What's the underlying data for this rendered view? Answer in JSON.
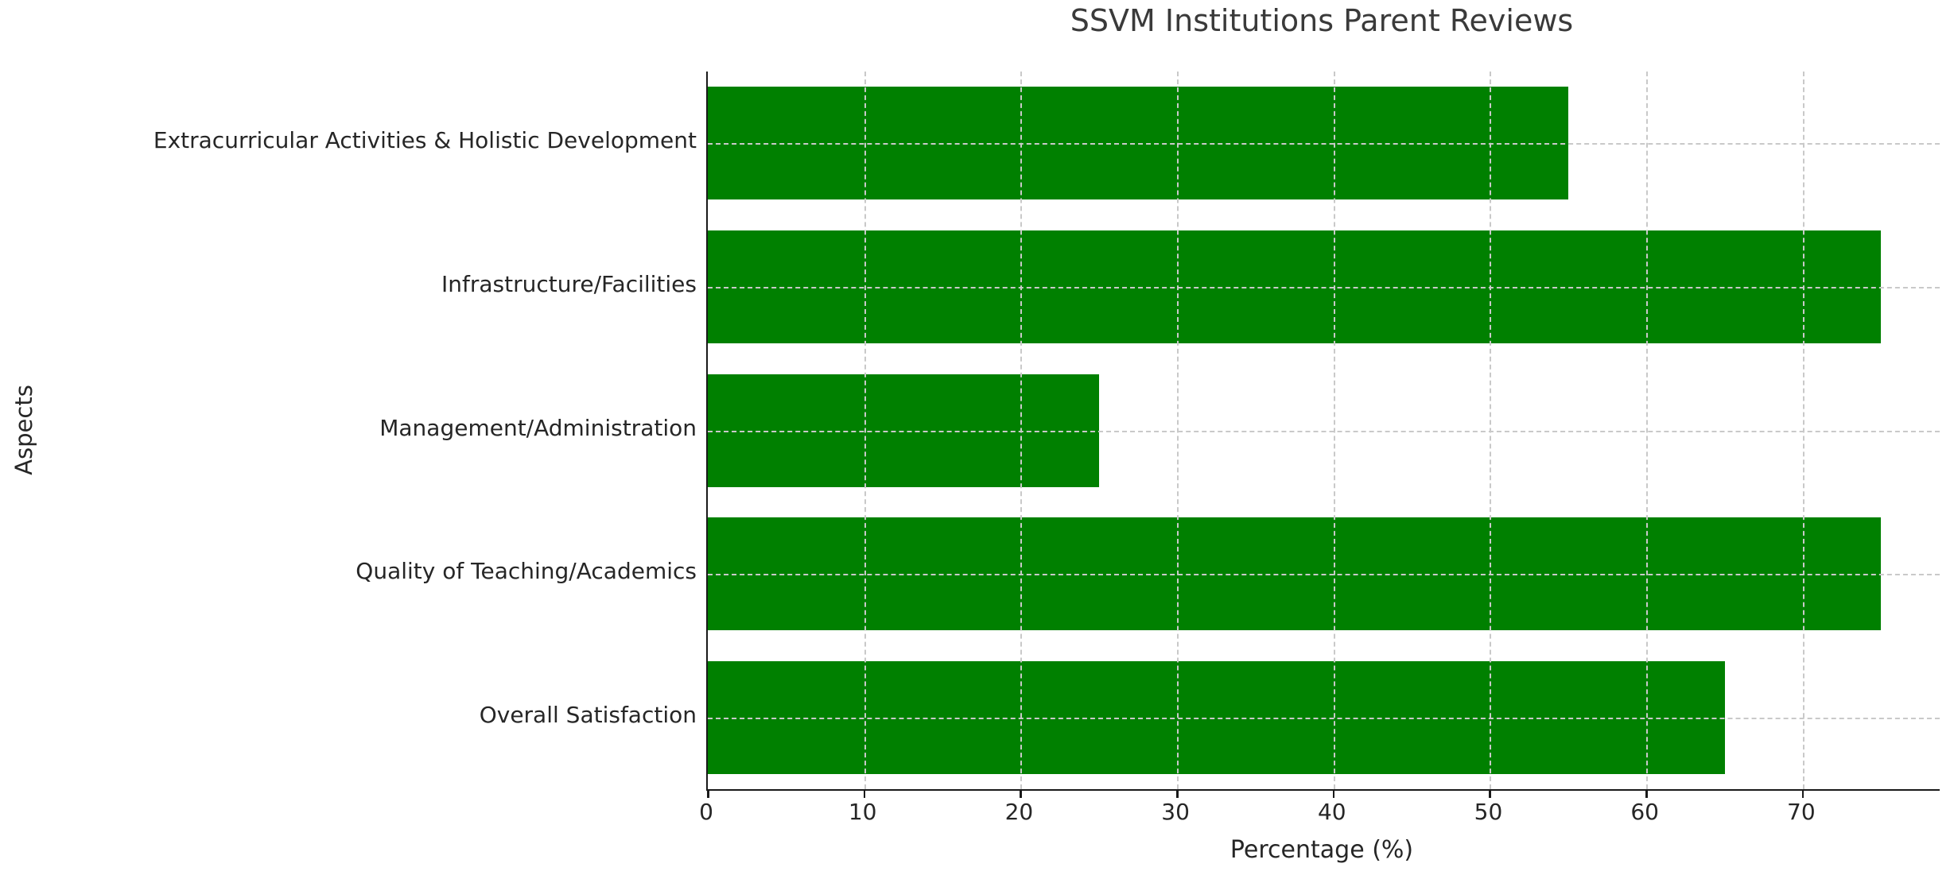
{
  "chart_data": {
    "type": "bar",
    "orientation": "horizontal",
    "title": "SSVM Institutions Parent Reviews",
    "xlabel": "Percentage (%)",
    "ylabel": "Aspects",
    "categories": [
      "Extracurricular Activities & Holistic Development",
      "Infrastructure/Facilities",
      "Management/Administration",
      "Quality of Teaching/Academics",
      "Overall Satisfaction"
    ],
    "values": [
      55,
      75,
      25,
      75,
      65
    ],
    "xticks": [
      0,
      10,
      20,
      30,
      40,
      50,
      60,
      70
    ],
    "xlim": [
      0,
      78.75
    ],
    "bar_color": "#008000",
    "grid": "dashed",
    "grid_color": "#c9c9c9",
    "axis_color": "#1a1a1a",
    "text_color": "#262626",
    "legend": "none",
    "background": "#ffffff"
  }
}
